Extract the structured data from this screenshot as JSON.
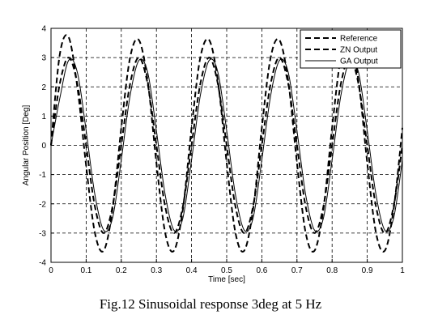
{
  "chart_data": {
    "type": "line",
    "xlabel": "Time  [sec]",
    "ylabel": "Angular Position  [Deg]",
    "xlim": [
      0,
      1
    ],
    "ylim": [
      -4,
      4
    ],
    "grid": true,
    "legend_position": "top-right",
    "x_ticks": [
      "0",
      "0.1",
      "0.2",
      "0.3",
      "0.4",
      "0.5",
      "0.6",
      "0.7",
      "0.8",
      "0.9",
      "1"
    ],
    "y_ticks": [
      "-4",
      "-3",
      "-2",
      "-1",
      "0",
      "1",
      "2",
      "3",
      "4"
    ],
    "series": [
      {
        "name": "Reference",
        "style": "dashed",
        "x": [
          0,
          0.025,
          0.05,
          0.075,
          0.1,
          0.125,
          0.15,
          0.175,
          0.2,
          0.225,
          0.25,
          0.275,
          0.3,
          0.325,
          0.35,
          0.375,
          0.4,
          0.425,
          0.45,
          0.475,
          0.5,
          0.525,
          0.55,
          0.575,
          0.6,
          0.625,
          0.65,
          0.675,
          0.7,
          0.725,
          0.75,
          0.775,
          0.8,
          0.825,
          0.85,
          0.875,
          0.9,
          0.925,
          0.95,
          0.975,
          1.0
        ],
        "y": [
          0,
          2.1,
          3,
          2.1,
          0,
          -2.1,
          -3,
          -2.1,
          0,
          2.1,
          3,
          2.1,
          0,
          -2.1,
          -3,
          -2.1,
          0,
          2.1,
          3,
          2.1,
          0,
          -2.1,
          -3,
          -2.1,
          0,
          2.1,
          3,
          2.1,
          0,
          -2.1,
          -3,
          -2.1,
          0,
          2.1,
          3,
          2.1,
          0,
          -2.1,
          -3,
          -2.1,
          0
        ]
      },
      {
        "name": "ZN  Output",
        "style": "dashed",
        "x": [
          0,
          0.025,
          0.05,
          0.075,
          0.1,
          0.125,
          0.15,
          0.175,
          0.2,
          0.225,
          0.25,
          0.275,
          0.3,
          0.325,
          0.35,
          0.375,
          0.4,
          0.425,
          0.45,
          0.475,
          0.5,
          0.525,
          0.55,
          0.575,
          0.6,
          0.625,
          0.65,
          0.675,
          0.7,
          0.725,
          0.75,
          0.775,
          0.8,
          0.825,
          0.85,
          0.875,
          0.9,
          0.925,
          0.95,
          0.975,
          1.0
        ],
        "y": [
          0,
          3.1,
          3.7,
          2.0,
          -0.7,
          -3.0,
          -3.6,
          -2.2,
          0.6,
          3.0,
          3.6,
          2.2,
          -0.6,
          -3.0,
          -3.6,
          -2.2,
          0.6,
          3.0,
          3.6,
          2.2,
          -0.6,
          -3.0,
          -3.6,
          -2.2,
          0.6,
          3.0,
          3.6,
          2.2,
          -0.6,
          -3.0,
          -3.6,
          -2.2,
          0.6,
          3.0,
          3.6,
          2.2,
          -0.6,
          -3.0,
          -3.6,
          -2.2,
          0.6
        ]
      },
      {
        "name": "GA  Output",
        "style": "solid",
        "x": [
          0,
          0.025,
          0.05,
          0.075,
          0.1,
          0.125,
          0.15,
          0.175,
          0.2,
          0.225,
          0.25,
          0.275,
          0.3,
          0.325,
          0.35,
          0.375,
          0.4,
          0.425,
          0.45,
          0.475,
          0.5,
          0.525,
          0.55,
          0.575,
          0.6,
          0.625,
          0.65,
          0.675,
          0.7,
          0.725,
          0.75,
          0.775,
          0.8,
          0.825,
          0.85,
          0.875,
          0.9,
          0.925,
          0.95,
          0.975,
          1.0
        ],
        "y": [
          0,
          1.6,
          2.9,
          2.5,
          0.5,
          -1.7,
          -2.9,
          -2.5,
          -0.5,
          1.7,
          2.9,
          2.5,
          0.5,
          -1.7,
          -2.9,
          -2.5,
          -0.5,
          1.7,
          2.9,
          2.5,
          0.5,
          -1.7,
          -2.9,
          -2.5,
          -0.5,
          1.7,
          2.9,
          2.5,
          0.5,
          -1.7,
          -2.9,
          -2.5,
          -0.5,
          1.7,
          2.9,
          2.5,
          0.5,
          -1.7,
          -2.9,
          -2.5,
          -0.5
        ]
      }
    ]
  },
  "caption": "Fig.12  Sinusoidal response 3deg at 5 Hz"
}
